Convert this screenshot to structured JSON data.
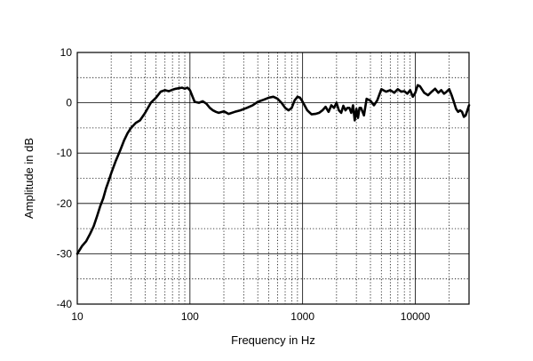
{
  "chart_data": {
    "type": "line",
    "title": "",
    "xlabel": "Frequency in Hz",
    "ylabel": "Amplitude in dB",
    "x_scale": "log",
    "xlim": [
      10,
      30000
    ],
    "ylim": [
      -40,
      10
    ],
    "x_ticks": [
      10,
      100,
      1000,
      10000
    ],
    "x_tick_labels": [
      "10",
      "100",
      "1000",
      "10000"
    ],
    "y_ticks": [
      10,
      0,
      -10,
      -20,
      -30,
      -40
    ],
    "y_tick_labels": [
      "10",
      "0",
      "-10",
      "-20",
      "-30",
      "-40"
    ],
    "grid": true,
    "series": [
      {
        "x": [
          10,
          11,
          12,
          13,
          14,
          15,
          16,
          17,
          18,
          19,
          20,
          22,
          24,
          26,
          28,
          30,
          33,
          36,
          40,
          45,
          50,
          55,
          60,
          65,
          70,
          75,
          80,
          85,
          90,
          95,
          100,
          110,
          120,
          130,
          140,
          150,
          160,
          170,
          180,
          200,
          220,
          250,
          280,
          320,
          360,
          400,
          450,
          500,
          550,
          600,
          650,
          700,
          750,
          800,
          850,
          900,
          950,
          1000,
          1100,
          1200,
          1300,
          1400,
          1500,
          1600,
          1700,
          1800,
          1900,
          2000,
          2100,
          2200,
          2300,
          2400,
          2500,
          2600,
          2700,
          2800,
          2900,
          3000,
          3100,
          3200,
          3300,
          3500,
          3700,
          4000,
          4300,
          4600,
          5000,
          5500,
          6000,
          6500,
          7000,
          7500,
          8000,
          8500,
          9000,
          9500,
          10000,
          10500,
          11000,
          12000,
          13000,
          14000,
          15000,
          16000,
          17000,
          18000,
          19000,
          20000,
          21000,
          22000,
          23000,
          24000,
          25000,
          26000,
          27000,
          28000,
          29000,
          30000
        ],
        "y": [
          -30,
          -28.5,
          -27.5,
          -26,
          -24.5,
          -22.5,
          -20.5,
          -19,
          -17,
          -15.5,
          -14,
          -11.5,
          -9.5,
          -7.5,
          -6,
          -5,
          -4,
          -3.5,
          -2,
          0,
          1,
          2.2,
          2.5,
          2.3,
          2.6,
          2.8,
          2.9,
          3,
          2.8,
          3,
          2.5,
          0.2,
          0,
          0.3,
          -0.2,
          -1,
          -1.5,
          -1.8,
          -2,
          -1.7,
          -2.2,
          -1.8,
          -1.5,
          -1,
          -0.5,
          0.2,
          0.6,
          1,
          1.2,
          0.8,
          0,
          -1,
          -1.5,
          -1,
          0.5,
          1.2,
          1,
          0.2,
          -1.5,
          -2.3,
          -2.2,
          -2,
          -1.5,
          -0.8,
          -1.8,
          -0.5,
          -1,
          0,
          -1.5,
          -2,
          -0.6,
          -1.5,
          -1,
          -1,
          -2,
          -0.5,
          -3.5,
          -1.2,
          -3,
          -1,
          -1,
          -2.5,
          0.8,
          0.4,
          -0.5,
          0.5,
          2.7,
          2.2,
          2.5,
          2,
          2.7,
          2.2,
          2.3,
          1.8,
          2.5,
          1.2,
          2,
          3.5,
          3.3,
          2,
          1.5,
          2.2,
          2.8,
          2,
          2.5,
          1.8,
          2.2,
          2.7,
          1.5,
          0.2,
          -1.2,
          -1.8,
          -1.5,
          -1.8,
          -2.8,
          -2.5,
          -1.5,
          -0.5
        ]
      }
    ]
  }
}
